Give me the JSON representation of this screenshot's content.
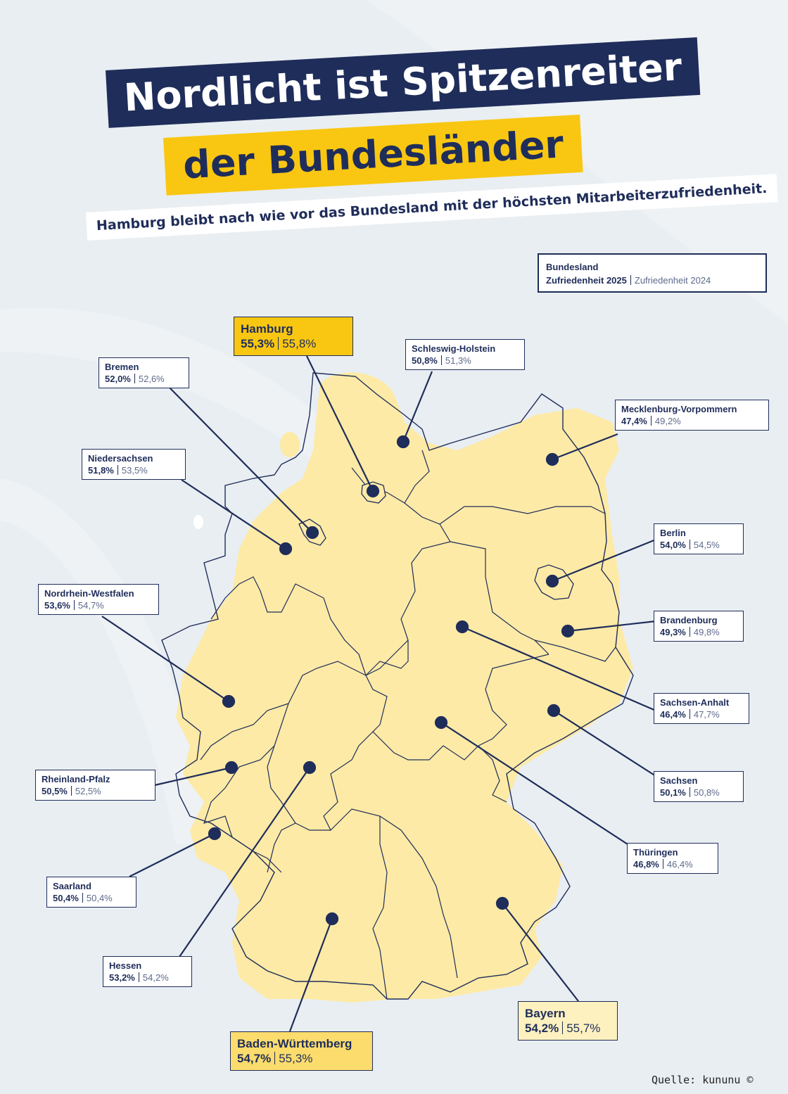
{
  "title": {
    "line1": "Nordlicht ist Spitzenreiter",
    "line2": "der Bundesländer"
  },
  "subtitle": "Hamburg bleibt nach wie vor das Bundesland mit der höchsten Mitarbeiterzufriedenheit.",
  "legend": {
    "title": "Bundesland",
    "current_label": "Zufriedenheit 2025",
    "previous_label": "Zufriedenheit 2024"
  },
  "colors": {
    "navy": "#1f2d5a",
    "gold": "#f9c712",
    "map_fill": "#fdeaa6",
    "background": "#e9eef2"
  },
  "states": [
    {
      "id": "hamburg",
      "name": "Hamburg",
      "v2025": "55,3%",
      "v2024": "55,8%"
    },
    {
      "id": "schleswig-holstein",
      "name": "Schleswig-Holstein",
      "v2025": "50,8%",
      "v2024": "51,3%"
    },
    {
      "id": "bremen",
      "name": "Bremen",
      "v2025": "52,0%",
      "v2024": "52,6%"
    },
    {
      "id": "mecklenburg-vorpommern",
      "name": "Mecklenburg-Vorpommern",
      "v2025": "47,4%",
      "v2024": "49,2%"
    },
    {
      "id": "niedersachsen",
      "name": "Niedersachsen",
      "v2025": "51,8%",
      "v2024": "53,5%"
    },
    {
      "id": "berlin",
      "name": "Berlin",
      "v2025": "54,0%",
      "v2024": "54,5%"
    },
    {
      "id": "nordrhein-westfalen",
      "name": "Nordrhein-Westfalen",
      "v2025": "53,6%",
      "v2024": "54,7%"
    },
    {
      "id": "brandenburg",
      "name": "Brandenburg",
      "v2025": "49,3%",
      "v2024": "49,8%"
    },
    {
      "id": "sachsen-anhalt",
      "name": "Sachsen-Anhalt",
      "v2025": "46,4%",
      "v2024": "47,7%"
    },
    {
      "id": "rheinland-pfalz",
      "name": "Rheinland-Pfalz",
      "v2025": "50,5%",
      "v2024": "52,5%"
    },
    {
      "id": "sachsen",
      "name": "Sachsen",
      "v2025": "50,1%",
      "v2024": "50,8%"
    },
    {
      "id": "thueringen",
      "name": "Thüringen",
      "v2025": "46,8%",
      "v2024": "46,4%"
    },
    {
      "id": "saarland",
      "name": "Saarland",
      "v2025": "50,4%",
      "v2024": "50,4%"
    },
    {
      "id": "hessen",
      "name": "Hessen",
      "v2025": "53,2%",
      "v2024": "54,2%"
    },
    {
      "id": "bayern",
      "name": "Bayern",
      "v2025": "54,2%",
      "v2024": "55,7%"
    },
    {
      "id": "baden-wuerttemberg",
      "name": "Baden-Württemberg",
      "v2025": "54,7%",
      "v2024": "55,3%"
    }
  ],
  "source": "Quelle: kununu ©"
}
